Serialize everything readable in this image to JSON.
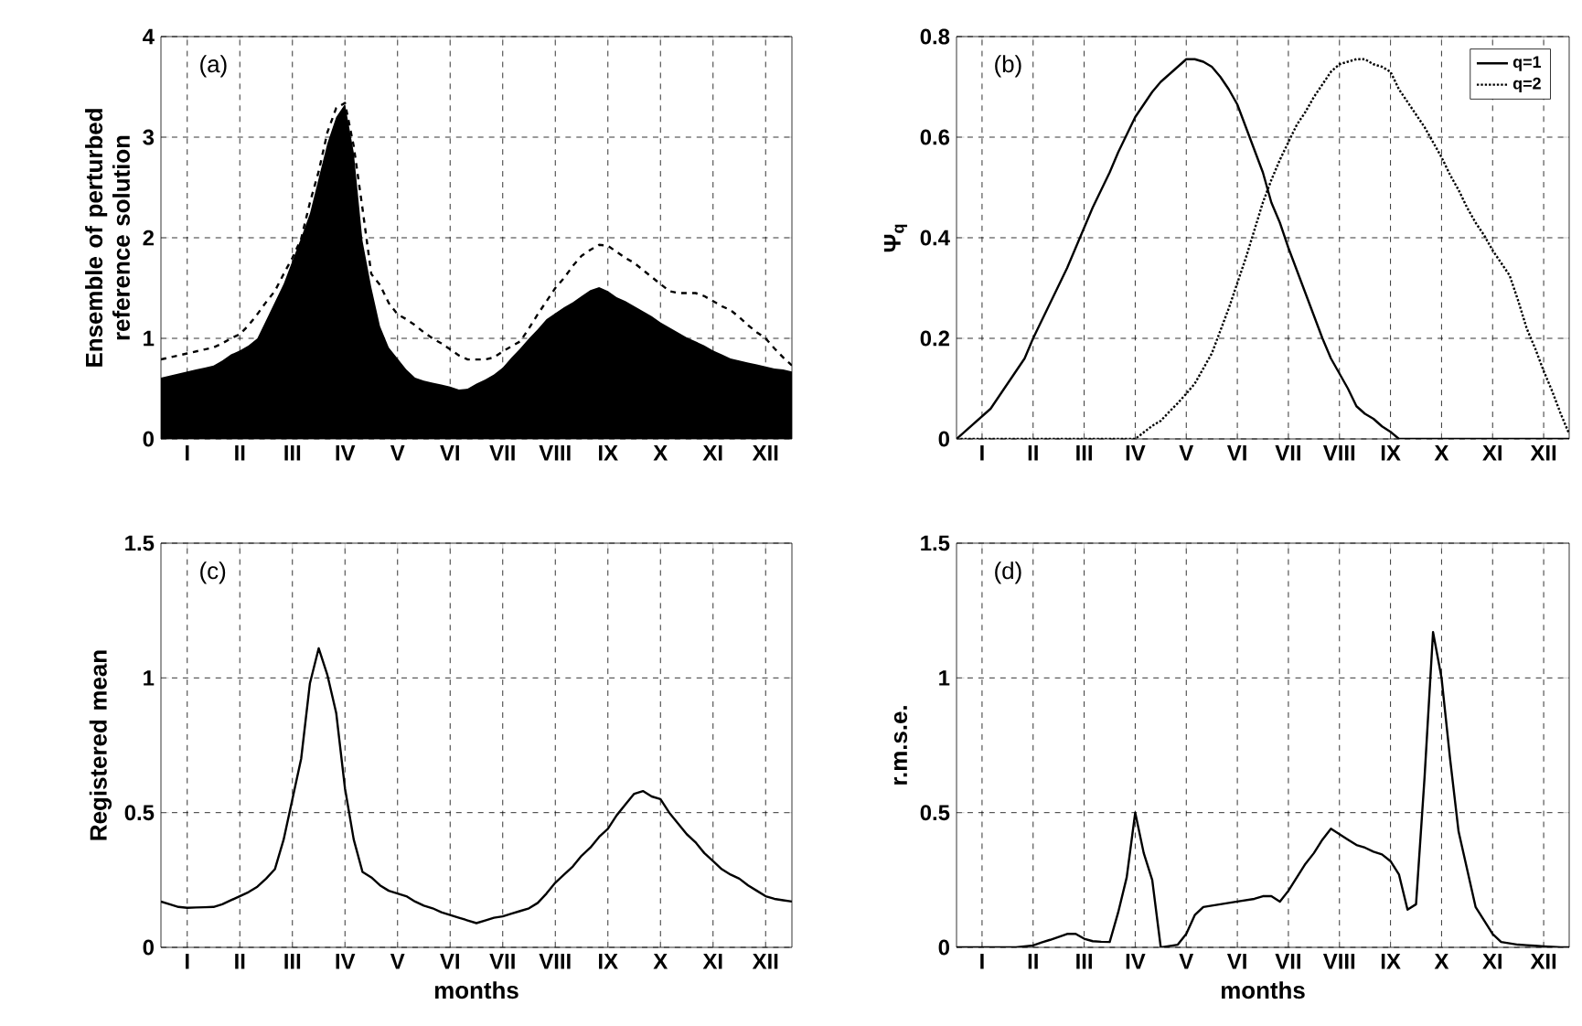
{
  "chart_data": [
    {
      "type": "line",
      "ylabel": "Ensemble of perturbed reference solution",
      "annotations": [
        "(a)"
      ],
      "grid": true,
      "categories": [
        null,
        null,
        null,
        "I",
        null,
        null,
        null,
        null,
        null,
        "II",
        null,
        null,
        null,
        null,
        null,
        "III",
        null,
        null,
        null,
        null,
        null,
        "IV",
        null,
        null,
        null,
        null,
        null,
        "V",
        null,
        null,
        null,
        null,
        null,
        "VI",
        null,
        null,
        null,
        null,
        null,
        "VII",
        null,
        null,
        null,
        null,
        null,
        "VIII",
        null,
        null,
        null,
        null,
        null,
        "IX",
        null,
        null,
        null,
        null,
        null,
        "X",
        null,
        null,
        null,
        null,
        null,
        "XI",
        null,
        null,
        null,
        null,
        null,
        "XII",
        null,
        null,
        null
      ],
      "ylim": [
        0,
        4
      ],
      "yticks": [
        0,
        1,
        2,
        3,
        4
      ],
      "series": [
        {
          "type": "area",
          "color": "#000000",
          "values": [
            0.61,
            0.63,
            0.65,
            0.67,
            0.69,
            0.71,
            0.73,
            0.78,
            0.84,
            0.88,
            0.93,
            1.0,
            1.18,
            1.36,
            1.54,
            1.77,
            2.0,
            2.24,
            2.59,
            2.94,
            3.2,
            3.33,
            2.85,
            1.97,
            1.51,
            1.12,
            0.91,
            0.8,
            0.69,
            0.61,
            0.58,
            0.56,
            0.54,
            0.52,
            0.49,
            0.5,
            0.55,
            0.59,
            0.64,
            0.71,
            0.81,
            0.9,
            1.0,
            1.09,
            1.19,
            1.25,
            1.31,
            1.36,
            1.42,
            1.48,
            1.51,
            1.47,
            1.41,
            1.37,
            1.32,
            1.27,
            1.22,
            1.16,
            1.11,
            1.06,
            1.01,
            0.97,
            0.93,
            0.88,
            0.84,
            0.8,
            0.78,
            0.76,
            0.74,
            0.72,
            0.7,
            0.69,
            0.67
          ]
        },
        {
          "type": "line",
          "line_style": "dashed",
          "color": "#000000",
          "values": [
            0.79,
            0.81,
            0.83,
            0.85,
            0.87,
            0.89,
            0.91,
            0.95,
            1.0,
            1.04,
            1.13,
            1.24,
            1.36,
            1.47,
            1.64,
            1.8,
            1.99,
            2.35,
            2.66,
            3.05,
            3.29,
            3.34,
            2.91,
            2.29,
            1.64,
            1.53,
            1.35,
            1.24,
            1.19,
            1.13,
            1.06,
            1.0,
            0.95,
            0.89,
            0.83,
            0.79,
            0.79,
            0.79,
            0.81,
            0.87,
            0.92,
            0.97,
            1.1,
            1.24,
            1.37,
            1.5,
            1.6,
            1.72,
            1.82,
            1.88,
            1.93,
            1.92,
            1.86,
            1.8,
            1.75,
            1.68,
            1.61,
            1.54,
            1.47,
            1.45,
            1.45,
            1.45,
            1.42,
            1.37,
            1.32,
            1.28,
            1.21,
            1.13,
            1.06,
            1.0,
            0.9,
            0.81,
            0.73
          ]
        }
      ]
    },
    {
      "type": "line",
      "ylabel": "Ψ$_{q}$",
      "annotations": [
        "(b)"
      ],
      "grid": true,
      "legend": "top right",
      "categories": [
        null,
        null,
        null,
        "I",
        null,
        null,
        null,
        null,
        null,
        "II",
        null,
        null,
        null,
        null,
        null,
        "III",
        null,
        null,
        null,
        null,
        null,
        "IV",
        null,
        null,
        null,
        null,
        null,
        "V",
        null,
        null,
        null,
        null,
        null,
        "VI",
        null,
        null,
        null,
        null,
        null,
        "VII",
        null,
        null,
        null,
        null,
        null,
        "VIII",
        null,
        null,
        null,
        null,
        null,
        "IX",
        null,
        null,
        null,
        null,
        null,
        "X",
        null,
        null,
        null,
        null,
        null,
        "XI",
        null,
        null,
        null,
        null,
        null,
        "XII",
        null,
        null,
        null
      ],
      "ylim": [
        0,
        0.8
      ],
      "yticks": [
        0,
        0.2,
        0.4,
        0.6,
        0.8
      ],
      "series": [
        {
          "name": "q=1",
          "line_style": "solid",
          "color": "#000000",
          "values": [
            0,
            0.015,
            0.03,
            0.045,
            0.06,
            0.085,
            0.11,
            0.135,
            0.16,
            0.2,
            0.235,
            0.27,
            0.305,
            0.34,
            0.38,
            0.42,
            0.46,
            0.495,
            0.53,
            0.57,
            0.605,
            0.64,
            0.665,
            0.69,
            0.71,
            0.725,
            0.74,
            0.755,
            0.755,
            0.75,
            0.74,
            0.72,
            0.695,
            0.665,
            0.62,
            0.575,
            0.53,
            0.47,
            0.43,
            0.38,
            0.335,
            0.29,
            0.245,
            0.2,
            0.16,
            0.13,
            0.1,
            0.065,
            0.05,
            0.04,
            0.025,
            0.014,
            0,
            0,
            0,
            0,
            0,
            0,
            0,
            0,
            0,
            0,
            0,
            0,
            0,
            0,
            0,
            0,
            0,
            0,
            0,
            0,
            0
          ]
        },
        {
          "name": "q=2",
          "line_style": "dotted",
          "color": "#000000",
          "values": [
            0,
            0,
            0,
            0,
            0,
            0,
            0,
            0,
            0,
            0,
            0,
            0,
            0,
            0,
            0,
            0,
            0,
            0,
            0,
            0,
            0,
            0,
            0.013,
            0.026,
            0.036,
            0.054,
            0.071,
            0.09,
            0.11,
            0.14,
            0.17,
            0.215,
            0.26,
            0.31,
            0.36,
            0.415,
            0.47,
            0.515,
            0.555,
            0.59,
            0.625,
            0.65,
            0.68,
            0.705,
            0.73,
            0.745,
            0.75,
            0.755,
            0.755,
            0.745,
            0.74,
            0.73,
            0.695,
            0.67,
            0.645,
            0.62,
            0.59,
            0.56,
            0.525,
            0.495,
            0.46,
            0.43,
            0.405,
            0.375,
            0.35,
            0.325,
            0.275,
            0.22,
            0.18,
            0.135,
            0.095,
            0.05,
            0.01
          ]
        }
      ]
    },
    {
      "type": "line",
      "xlabel": "months",
      "ylabel": "Registered mean",
      "annotations": [
        "(c)"
      ],
      "grid": true,
      "categories": [
        null,
        null,
        null,
        "I",
        null,
        null,
        null,
        null,
        null,
        "II",
        null,
        null,
        null,
        null,
        null,
        "III",
        null,
        null,
        null,
        null,
        null,
        "IV",
        null,
        null,
        null,
        null,
        null,
        "V",
        null,
        null,
        null,
        null,
        null,
        "VI",
        null,
        null,
        null,
        null,
        null,
        "VII",
        null,
        null,
        null,
        null,
        null,
        "VIII",
        null,
        null,
        null,
        null,
        null,
        "IX",
        null,
        null,
        null,
        null,
        null,
        "X",
        null,
        null,
        null,
        null,
        null,
        "XI",
        null,
        null,
        null,
        null,
        null,
        "XII",
        null,
        null,
        null
      ],
      "ylim": [
        0,
        1.5
      ],
      "yticks": [
        0,
        0.5,
        1,
        1.5
      ],
      "series": [
        {
          "line_style": "solid",
          "color": "#000000",
          "values": [
            0.17,
            0.16,
            0.15,
            0.147,
            0.148,
            0.149,
            0.15,
            0.16,
            0.175,
            0.19,
            0.205,
            0.225,
            0.255,
            0.29,
            0.4,
            0.55,
            0.7,
            0.98,
            1.11,
            1.01,
            0.87,
            0.59,
            0.4,
            0.28,
            0.26,
            0.23,
            0.21,
            0.2,
            0.19,
            0.17,
            0.155,
            0.145,
            0.13,
            0.12,
            0.11,
            0.1,
            0.09,
            0.1,
            0.11,
            0.115,
            0.125,
            0.135,
            0.145,
            0.165,
            0.2,
            0.24,
            0.27,
            0.3,
            0.34,
            0.37,
            0.41,
            0.44,
            0.49,
            0.53,
            0.57,
            0.58,
            0.56,
            0.55,
            0.5,
            0.46,
            0.42,
            0.39,
            0.35,
            0.32,
            0.29,
            0.27,
            0.255,
            0.23,
            0.21,
            0.19,
            0.18,
            0.175,
            0.17
          ]
        }
      ]
    },
    {
      "type": "line",
      "xlabel": "months",
      "ylabel": "r.m.s.e.",
      "annotations": [
        "(d)"
      ],
      "grid": true,
      "categories": [
        null,
        null,
        null,
        "I",
        null,
        null,
        null,
        null,
        null,
        "II",
        null,
        null,
        null,
        null,
        null,
        "III",
        null,
        null,
        null,
        null,
        null,
        "IV",
        null,
        null,
        null,
        null,
        null,
        "V",
        null,
        null,
        null,
        null,
        null,
        "VI",
        null,
        null,
        null,
        null,
        null,
        "VII",
        null,
        null,
        null,
        null,
        null,
        "VIII",
        null,
        null,
        null,
        null,
        null,
        "IX",
        null,
        null,
        null,
        null,
        null,
        "X",
        null,
        null,
        null,
        null,
        null,
        "XI",
        null,
        null,
        null,
        null,
        null,
        "XII",
        null,
        null,
        null
      ],
      "ylim": [
        0,
        1.5
      ],
      "yticks": [
        0,
        0.5,
        1,
        1.5
      ],
      "series": [
        {
          "line_style": "solid",
          "color": "#000000",
          "values": [
            0,
            0,
            0,
            0,
            0,
            0,
            0,
            0,
            0.004,
            0.007,
            0.018,
            0.028,
            0.039,
            0.05,
            0.05,
            0.032,
            0.023,
            0.021,
            0.02,
            0.13,
            0.26,
            0.5,
            0.35,
            0.25,
            0,
            0.005,
            0.01,
            0.05,
            0.12,
            0.15,
            0.155,
            0.16,
            0.165,
            0.17,
            0.175,
            0.18,
            0.19,
            0.19,
            0.17,
            0.21,
            0.26,
            0.31,
            0.35,
            0.4,
            0.44,
            0.42,
            0.4,
            0.38,
            0.37,
            0.355,
            0.345,
            0.32,
            0.27,
            0.14,
            0.16,
            0.63,
            1.17,
            1.0,
            0.7,
            0.43,
            0.29,
            0.15,
            0.1,
            0.05,
            0.02,
            0.015,
            0.01,
            0.008,
            0.006,
            0.004,
            0.002,
            0,
            0
          ]
        }
      ]
    }
  ]
}
